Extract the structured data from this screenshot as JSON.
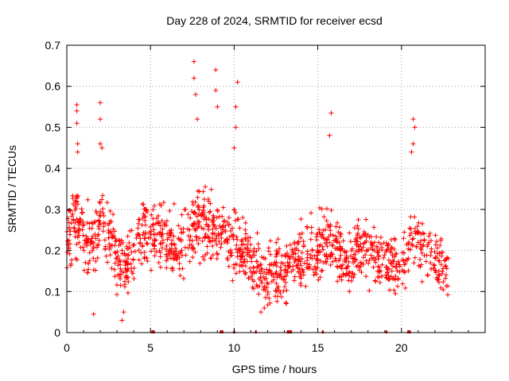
{
  "chart_data": {
    "type": "scatter",
    "title": "Day 228 of 2024, SRMTID for receiver ecsd",
    "xlabel": "GPS time / hours",
    "ylabel": "SRMTID / TECUs",
    "xlim": [
      0,
      25
    ],
    "ylim": [
      0,
      0.7
    ],
    "xticks": [
      0,
      5,
      10,
      15,
      20
    ],
    "yticks": [
      0,
      0.1,
      0.2,
      0.3,
      0.4,
      0.5,
      0.6,
      0.7
    ],
    "grid": true,
    "marker": "+",
    "color": "#ff0000",
    "missing_data_marks_hours": [
      5.1,
      5.2,
      9.2,
      9.3,
      10.0,
      11.3,
      13.2,
      13.3,
      13.4,
      15.3,
      19.1,
      20.4,
      20.5
    ],
    "series": [
      {
        "name": "SRMTID",
        "trend": [
          [
            0.0,
            0.22
          ],
          [
            0.5,
            0.27
          ],
          [
            1.0,
            0.24
          ],
          [
            1.5,
            0.22
          ],
          [
            2.0,
            0.26
          ],
          [
            2.5,
            0.24
          ],
          [
            3.0,
            0.18
          ],
          [
            3.5,
            0.16
          ],
          [
            4.0,
            0.19
          ],
          [
            4.5,
            0.23
          ],
          [
            5.0,
            0.25
          ],
          [
            5.5,
            0.24
          ],
          [
            6.0,
            0.22
          ],
          [
            6.5,
            0.21
          ],
          [
            7.0,
            0.22
          ],
          [
            7.5,
            0.25
          ],
          [
            8.0,
            0.27
          ],
          [
            8.5,
            0.26
          ],
          [
            9.0,
            0.24
          ],
          [
            9.5,
            0.23
          ],
          [
            10.0,
            0.22
          ],
          [
            10.5,
            0.2
          ],
          [
            11.0,
            0.18
          ],
          [
            11.5,
            0.15
          ],
          [
            12.0,
            0.14
          ],
          [
            12.5,
            0.15
          ],
          [
            13.0,
            0.16
          ],
          [
            13.5,
            0.17
          ],
          [
            14.0,
            0.19
          ],
          [
            14.5,
            0.2
          ],
          [
            15.0,
            0.2
          ],
          [
            15.5,
            0.22
          ],
          [
            16.0,
            0.2
          ],
          [
            16.5,
            0.18
          ],
          [
            17.0,
            0.19
          ],
          [
            17.5,
            0.2
          ],
          [
            18.0,
            0.19
          ],
          [
            18.5,
            0.18
          ],
          [
            19.0,
            0.17
          ],
          [
            19.5,
            0.16
          ],
          [
            20.0,
            0.17
          ],
          [
            20.5,
            0.21
          ],
          [
            21.0,
            0.22
          ],
          [
            21.5,
            0.2
          ],
          [
            22.0,
            0.17
          ],
          [
            22.5,
            0.16
          ],
          [
            22.8,
            0.16
          ]
        ],
        "spikes": [
          [
            0.6,
            0.555
          ],
          [
            0.6,
            0.54
          ],
          [
            0.6,
            0.51
          ],
          [
            0.65,
            0.46
          ],
          [
            0.65,
            0.44
          ],
          [
            2.0,
            0.56
          ],
          [
            2.0,
            0.52
          ],
          [
            2.0,
            0.46
          ],
          [
            2.1,
            0.45
          ],
          [
            7.6,
            0.66
          ],
          [
            7.6,
            0.62
          ],
          [
            7.7,
            0.58
          ],
          [
            7.8,
            0.52
          ],
          [
            8.9,
            0.64
          ],
          [
            8.9,
            0.59
          ],
          [
            9.0,
            0.55
          ],
          [
            10.2,
            0.61
          ],
          [
            10.1,
            0.55
          ],
          [
            10.1,
            0.5
          ],
          [
            10.0,
            0.45
          ],
          [
            15.8,
            0.535
          ],
          [
            15.7,
            0.48
          ],
          [
            20.7,
            0.52
          ],
          [
            20.8,
            0.5
          ],
          [
            20.7,
            0.46
          ],
          [
            20.6,
            0.44
          ],
          [
            1.6,
            0.045
          ],
          [
            3.3,
            0.03
          ],
          [
            3.4,
            0.05
          ],
          [
            11.6,
            0.05
          ],
          [
            11.8,
            0.06
          ]
        ],
        "point_count": 1400
      }
    ]
  }
}
